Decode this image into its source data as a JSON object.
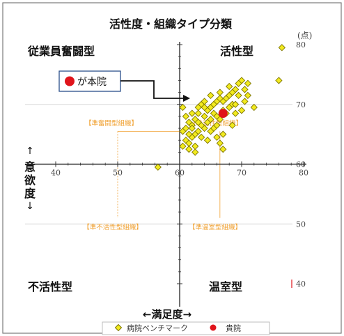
{
  "title": "活性度・組織タイプ分類",
  "unit_label": "(点)",
  "quadrants": {
    "top_left": "従業員奮闘型",
    "top_right": "活性型",
    "bottom_left": "不活性型",
    "bottom_right": "温室型"
  },
  "sub_zones": {
    "top_left": "【準奮闘型組織】",
    "top_right": "【準活性型組織】",
    "bottom_left": "【準不活性型組織】",
    "bottom_right": "【準温室型組織】"
  },
  "callout": {
    "text": "が本院",
    "marker_color": "#e0141b"
  },
  "y_axis_label": [
    "意",
    "欲",
    "度"
  ],
  "x_axis_label": "←満足度→",
  "legend": {
    "benchmark": "病院ベンチマーク",
    "self": "貴院"
  },
  "colors": {
    "benchmark_fill": "#f2ea1f",
    "benchmark_stroke": "#7c7400",
    "self": "#e0141b",
    "axis": "#333333",
    "sub_zone": "#f0a030"
  },
  "chart_data": {
    "type": "scatter",
    "title": "活性度・組織タイプ分類",
    "xlabel": "←満足度→",
    "ylabel": "意欲度",
    "xlim": [
      40,
      80
    ],
    "ylim": [
      40,
      80
    ],
    "x_ticks": [
      40,
      50,
      60,
      70,
      80
    ],
    "y_ticks": [
      40,
      50,
      60,
      70,
      80
    ],
    "axis_crossing": {
      "x": 60,
      "y": 60
    },
    "series": [
      {
        "name": "病院ベンチマーク",
        "marker": "diamond",
        "points": [
          [
            56.5,
            59.5
          ],
          [
            60.5,
            69.5
          ],
          [
            61.0,
            68.0
          ],
          [
            61.5,
            67.0
          ],
          [
            62.0,
            66.5
          ],
          [
            62.5,
            65.0
          ],
          [
            63.0,
            68.5
          ],
          [
            63.5,
            70.0
          ],
          [
            64.0,
            66.0
          ],
          [
            64.5,
            69.0
          ],
          [
            65.0,
            71.5
          ],
          [
            65.5,
            68.5
          ],
          [
            66.0,
            70.5
          ],
          [
            66.5,
            72.0
          ],
          [
            67.0,
            69.0
          ],
          [
            67.5,
            71.0
          ],
          [
            68.0,
            73.0
          ],
          [
            68.5,
            70.0
          ],
          [
            69.0,
            72.5
          ],
          [
            69.5,
            71.5
          ],
          [
            70.0,
            74.0
          ],
          [
            70.5,
            70.5
          ],
          [
            71.0,
            73.5
          ],
          [
            72.0,
            69.5
          ],
          [
            61.0,
            64.0
          ],
          [
            61.5,
            63.5
          ],
          [
            62.0,
            64.5
          ],
          [
            62.5,
            67.5
          ],
          [
            63.0,
            65.5
          ],
          [
            63.5,
            66.5
          ],
          [
            64.0,
            68.0
          ],
          [
            64.5,
            67.0
          ],
          [
            65.0,
            69.5
          ],
          [
            65.5,
            66.0
          ],
          [
            66.0,
            68.0
          ],
          [
            66.5,
            67.5
          ],
          [
            67.0,
            70.5
          ],
          [
            67.5,
            68.5
          ],
          [
            68.0,
            69.5
          ],
          [
            68.5,
            72.0
          ],
          [
            69.0,
            70.0
          ],
          [
            69.5,
            73.5
          ],
          [
            62.0,
            68.5
          ],
          [
            63.0,
            69.5
          ],
          [
            64.0,
            70.5
          ],
          [
            65.0,
            67.5
          ],
          [
            66.0,
            66.5
          ],
          [
            67.0,
            65.0
          ],
          [
            62.5,
            63.0
          ],
          [
            60.5,
            65.5
          ],
          [
            61.0,
            66.0
          ],
          [
            61.5,
            65.0
          ],
          [
            63.5,
            64.5
          ],
          [
            64.5,
            64.0
          ],
          [
            65.5,
            70.0
          ],
          [
            66.5,
            71.0
          ],
          [
            68.0,
            71.5
          ],
          [
            70.5,
            72.5
          ],
          [
            71.0,
            71.5
          ],
          [
            64.0,
            69.5
          ],
          [
            63.0,
            67.0
          ],
          [
            62.0,
            66.0
          ],
          [
            65.0,
            65.5
          ],
          [
            66.0,
            64.5
          ],
          [
            66.5,
            63.5
          ],
          [
            60.5,
            63.0
          ],
          [
            61.5,
            62.5
          ],
          [
            62.5,
            62.0
          ],
          [
            67.0,
            62.5
          ],
          [
            68.5,
            66.5
          ],
          [
            69.0,
            68.5
          ],
          [
            70.0,
            69.0
          ],
          [
            76.0,
            74.0
          ],
          [
            76.5,
            79.5
          ]
        ]
      },
      {
        "name": "貴院",
        "marker": "circle",
        "points": [
          [
            67.0,
            68.5
          ]
        ]
      }
    ]
  }
}
